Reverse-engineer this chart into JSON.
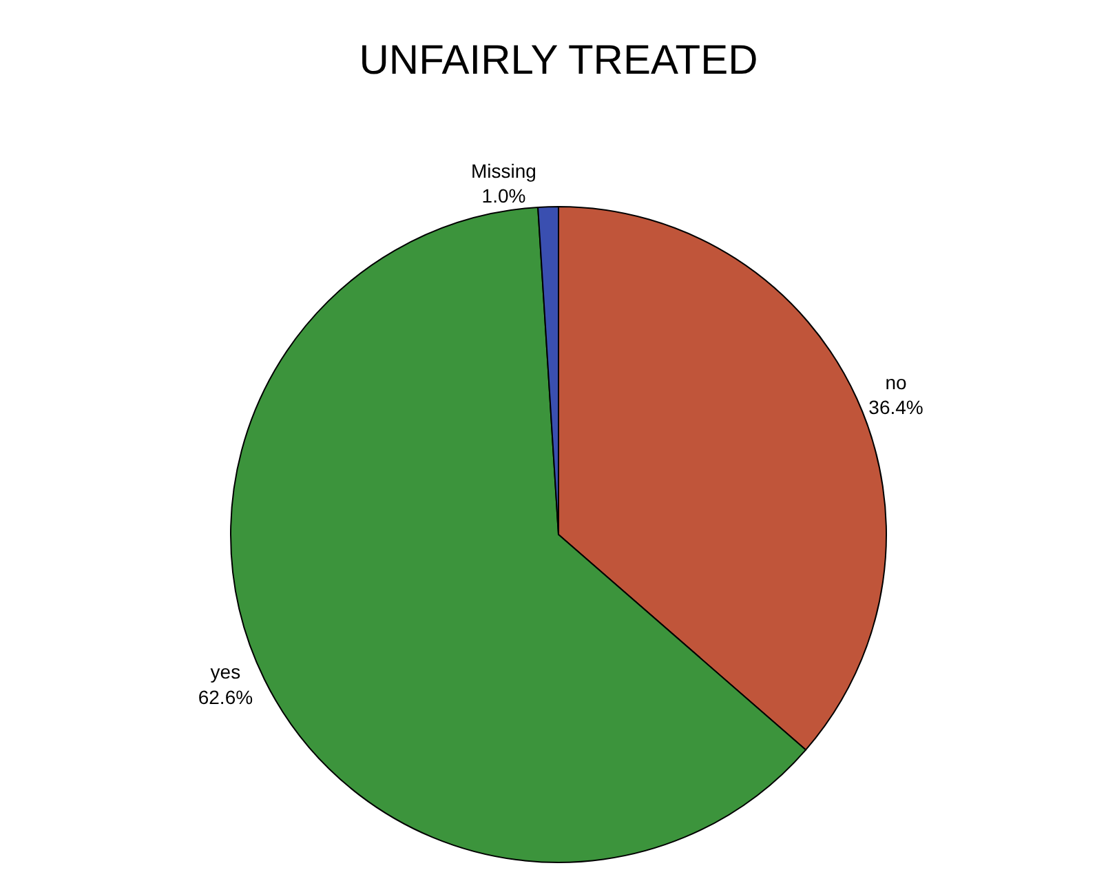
{
  "chart_data": {
    "type": "pie",
    "title": "UNFAIRLY TREATED",
    "categories": [
      "no",
      "yes",
      "Missing"
    ],
    "values": [
      36.4,
      62.6,
      1.0
    ],
    "value_labels": [
      "36.4%",
      "62.6%",
      "1.0%"
    ],
    "colors": [
      "#c0553a",
      "#3c943c",
      "#3a4fb0"
    ],
    "legend": false
  }
}
